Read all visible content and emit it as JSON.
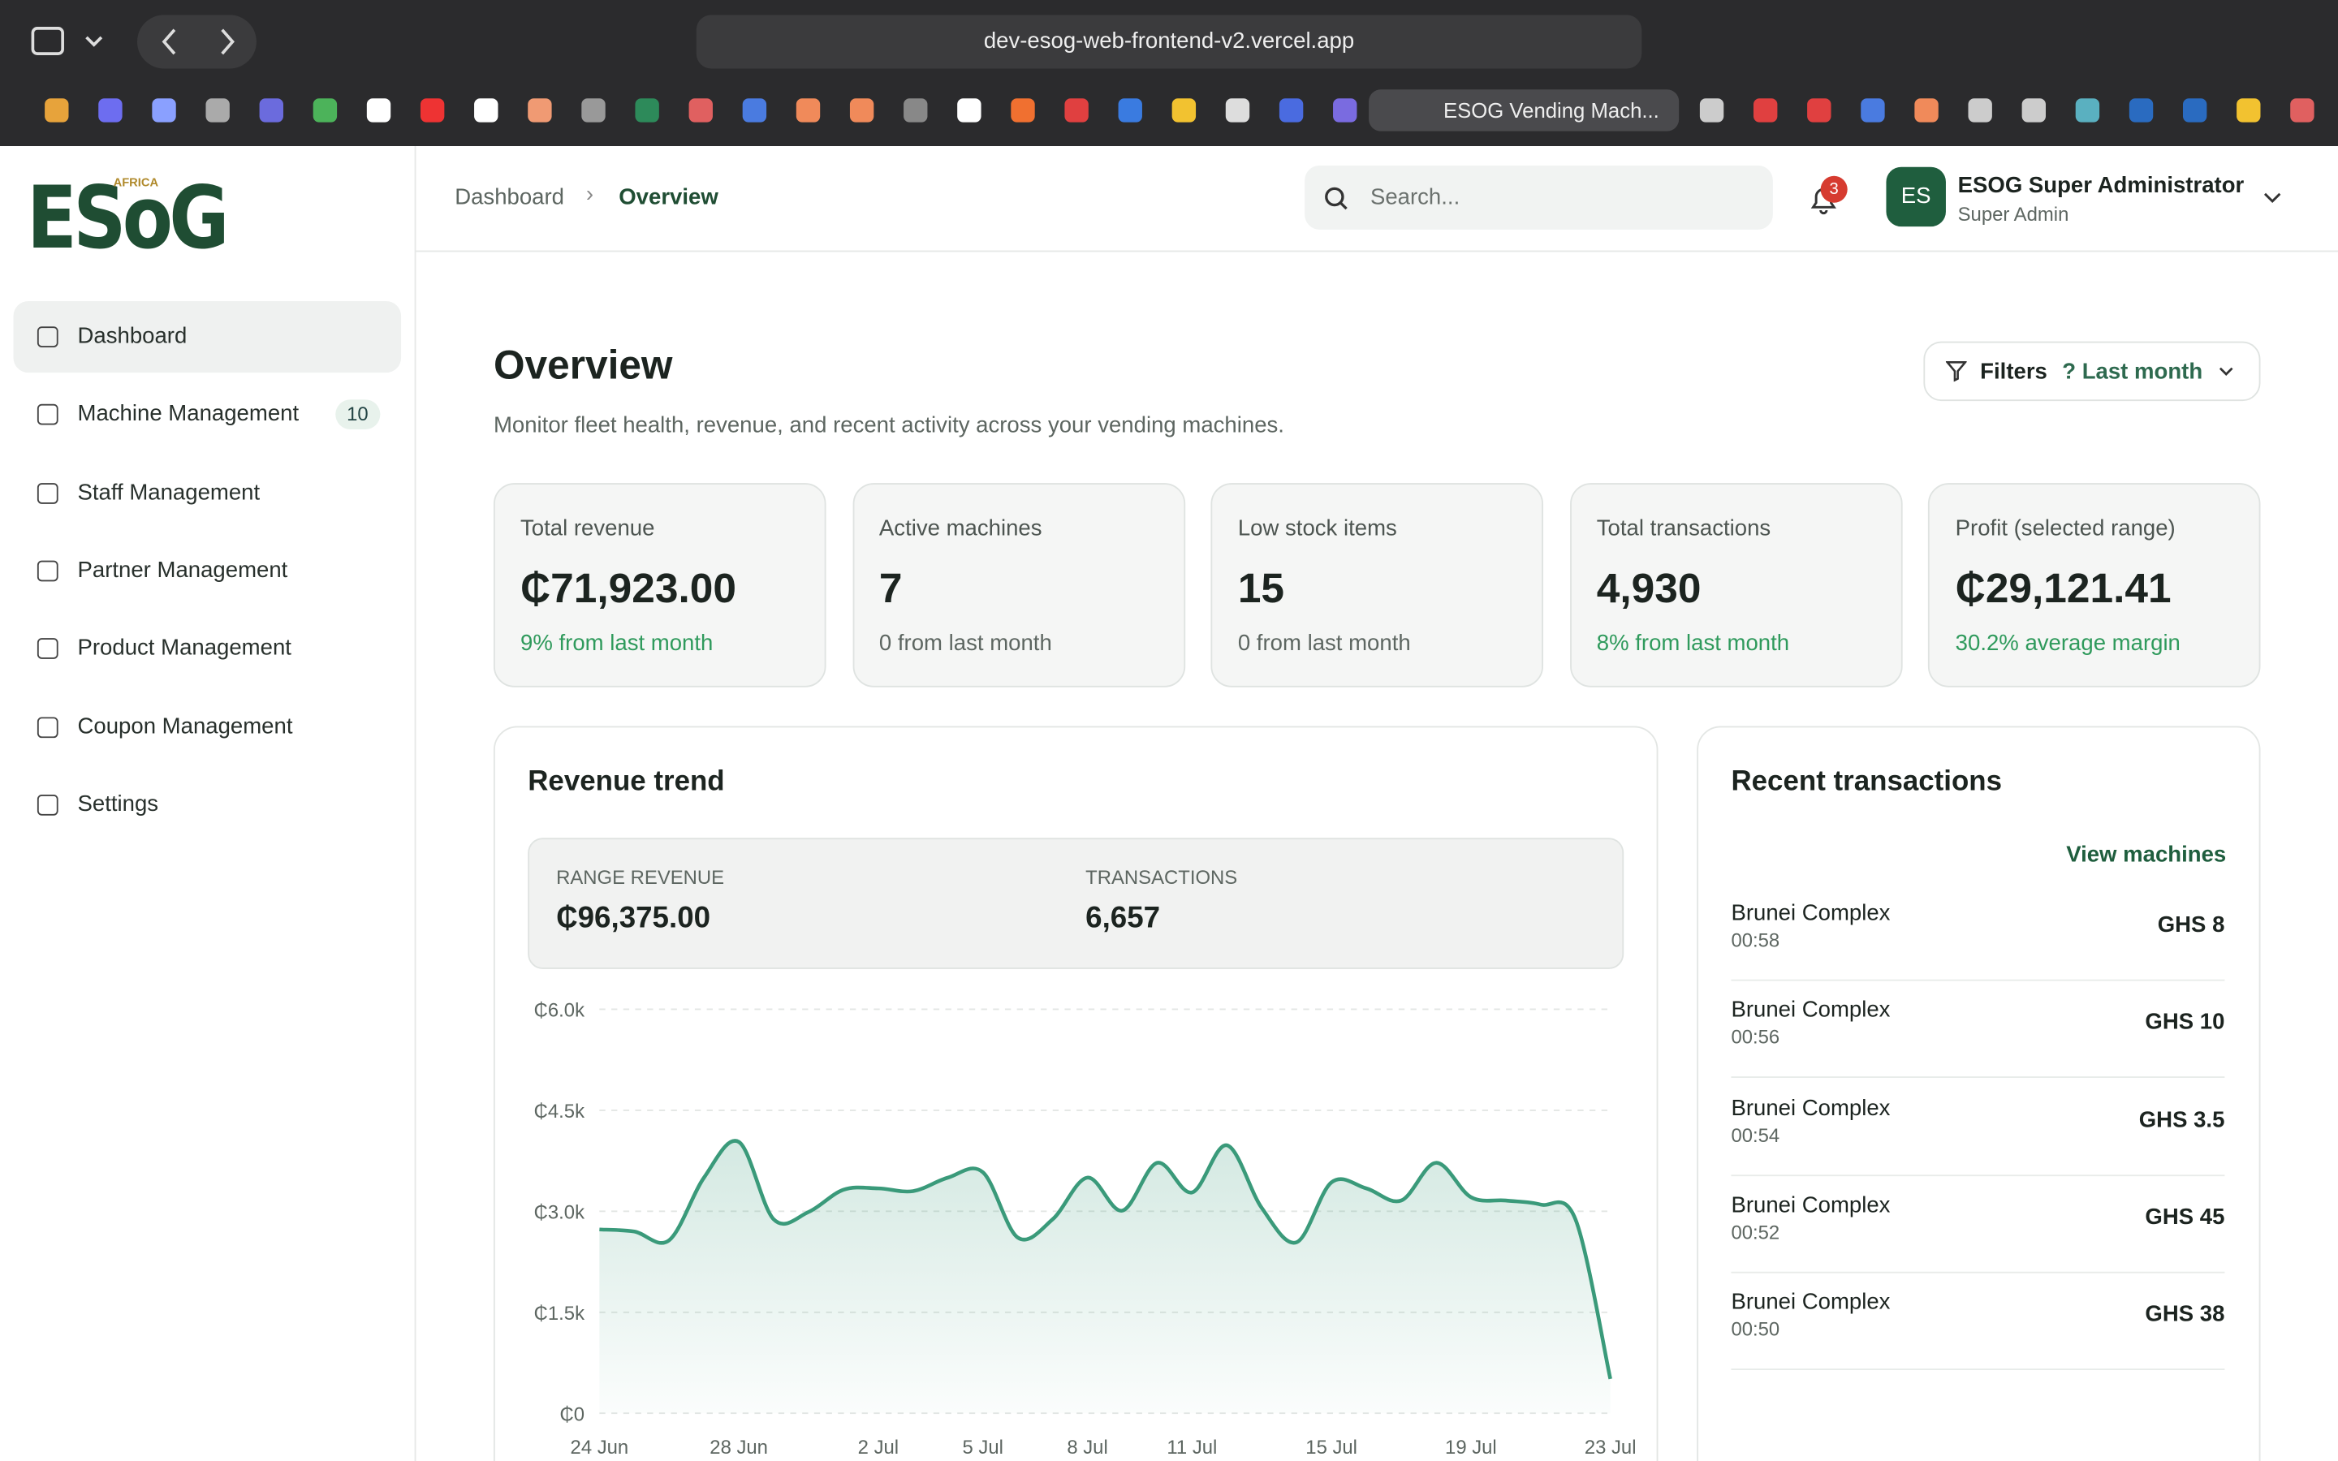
{
  "browser": {
    "url": "dev-esog-web-frontend-v2.vercel.app",
    "active_tab": "ESOG Vending Mach..."
  },
  "sidebar": {
    "logo": "ESoG",
    "logo_tag": "AFRICA",
    "items": [
      {
        "label": "Dashboard"
      },
      {
        "label": "Machine Management",
        "badge": "10"
      },
      {
        "label": "Staff Management"
      },
      {
        "label": "Partner Management"
      },
      {
        "label": "Product Management"
      },
      {
        "label": "Coupon Management"
      },
      {
        "label": "Settings"
      }
    ]
  },
  "header": {
    "breadcrumb": [
      "Dashboard",
      "Overview"
    ],
    "search_placeholder": "Search...",
    "notifications": "3",
    "user": {
      "initials": "ES",
      "name": "ESOG Super Administrator",
      "role": "Super Admin"
    }
  },
  "overview": {
    "title": "Overview",
    "subtitle": "Monitor fleet health, revenue, and recent activity across your vending machines.",
    "filters": "Filters",
    "range": "? Last month"
  },
  "cards": [
    {
      "label": "Total revenue",
      "value": "₵71,923.00",
      "change": "9% from last month",
      "color": "#2f9a5c"
    },
    {
      "label": "Active machines",
      "value": "7",
      "change": "0 from last month",
      "color": "#5d6661"
    },
    {
      "label": "Low stock items",
      "value": "15",
      "change": "0 from last month",
      "color": "#5d6661"
    },
    {
      "label": "Total transactions",
      "value": "4,930",
      "change": "8% from last month",
      "color": "#2f9a5c"
    },
    {
      "label": "Profit (selected range)",
      "value": "₵29,121.41",
      "change": "30.2% average margin",
      "color": "#2f9a5c"
    }
  ],
  "revenue_trend": {
    "title": "Revenue trend",
    "summary": [
      {
        "label": "RANGE REVENUE",
        "value": "₵96,375.00"
      },
      {
        "label": "TRANSACTIONS",
        "value": "6,657"
      }
    ],
    "chart_data": {
      "type": "area",
      "categories": [
        "24 Jun",
        null,
        null,
        null,
        "28 Jun",
        null,
        null,
        null,
        "2 Jul",
        null,
        null,
        "5 Jul",
        null,
        null,
        "8 Jul",
        null,
        null,
        "11 Jul",
        null,
        null,
        null,
        "15 Jul",
        null,
        null,
        null,
        "19 Jul",
        null,
        null,
        null,
        "23 Jul"
      ],
      "values": [
        2730,
        2700,
        2570,
        3500,
        4030,
        2880,
        2990,
        3320,
        3340,
        3300,
        3500,
        3580,
        2610,
        2880,
        3500,
        3010,
        3720,
        3280,
        3980,
        3050,
        2540,
        3430,
        3340,
        3160,
        3720,
        3210,
        3160,
        3100,
        2880,
        510
      ],
      "color": "#3a9a7a",
      "ylim": [
        0,
        6000
      ],
      "yticks": [
        {
          "value": 0,
          "label": "₵0"
        },
        {
          "value": 1500,
          "label": "₵1.5k"
        },
        {
          "value": 3000,
          "label": "₵3.0k"
        },
        {
          "value": 4500,
          "label": "₵4.5k"
        },
        {
          "value": 6000,
          "label": "₵6.0k"
        }
      ],
      "grid": true
    }
  },
  "transactions": {
    "title": "Recent transactions",
    "link": "View machines",
    "rows": [
      {
        "name": "Brunei Complex",
        "time": "00:58",
        "amount": "GHS 8"
      },
      {
        "name": "Brunei Complex",
        "time": "00:56",
        "amount": "GHS 10"
      },
      {
        "name": "Brunei Complex",
        "time": "00:54",
        "amount": "GHS 3.5"
      },
      {
        "name": "Brunei Complex",
        "time": "00:52",
        "amount": "GHS 45"
      },
      {
        "name": "Brunei Complex",
        "time": "00:50",
        "amount": "GHS 38"
      }
    ]
  }
}
